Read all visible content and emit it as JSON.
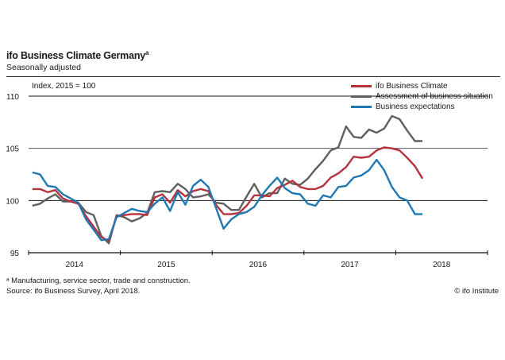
{
  "header": {
    "title": "ifo Business Climate Germany",
    "title_footnote_mark": "a",
    "subtitle": "Seasonally adjusted"
  },
  "footer": {
    "footnote": "ᵃ Manufacturing, service sector, trade and construction.",
    "source": "Source: ifo Business Survey, April 2018.",
    "copyright": "© ifo Institute"
  },
  "chart_data": {
    "type": "line",
    "title": "ifo Business Climate Germany",
    "subtitle": "Seasonally adjusted",
    "ylabel": "Index, 2015 = 100",
    "xlabel": "",
    "ylim": [
      95,
      110
    ],
    "yticks": [
      95,
      100,
      105,
      110
    ],
    "gridlines_y": [
      100,
      105,
      110
    ],
    "x_range": [
      "2014-01",
      "2018-12"
    ],
    "x_tick_labels": [
      "2014",
      "2015",
      "2016",
      "2017",
      "2018"
    ],
    "x_frequency": "monthly",
    "x_start": "2014-01",
    "legend_position": "top-right",
    "series": [
      {
        "name": "ifo Business Climate",
        "color": "#b5333f",
        "values": [
          101.1,
          101.1,
          100.8,
          101.0,
          100.2,
          99.9,
          99.7,
          98.5,
          97.5,
          96.5,
          96.1,
          98.5,
          98.6,
          98.7,
          98.7,
          98.6,
          100.3,
          100.6,
          99.8,
          101.0,
          100.4,
          100.9,
          101.1,
          100.9,
          99.6,
          98.7,
          98.7,
          98.8,
          99.5,
          100.5,
          100.5,
          100.4,
          101.2,
          101.5,
          101.9,
          101.3,
          101.1,
          101.1,
          101.4,
          102.2,
          102.6,
          103.2,
          104.2,
          104.1,
          104.2,
          104.8,
          105.1,
          105.0,
          104.8,
          104.1,
          103.3,
          102.1
        ]
      },
      {
        "name": "Assessment of business situation",
        "color": "#5f5f5f",
        "values": [
          99.5,
          99.7,
          100.2,
          100.6,
          99.9,
          99.9,
          99.8,
          98.9,
          98.6,
          96.6,
          95.9,
          98.6,
          98.4,
          98.0,
          98.3,
          98.8,
          100.8,
          100.9,
          100.8,
          101.6,
          101.1,
          100.3,
          100.4,
          100.6,
          99.8,
          99.7,
          99.1,
          99.1,
          100.4,
          101.6,
          100.3,
          100.7,
          100.7,
          102.1,
          101.6,
          101.5,
          102.1,
          103.0,
          103.8,
          104.8,
          105.1,
          107.1,
          106.1,
          106.0,
          106.8,
          106.5,
          106.9,
          108.1,
          107.8,
          106.7,
          105.7,
          105.7
        ]
      },
      {
        "name": "Business expectations",
        "color": "#1f78b4",
        "values": [
          102.7,
          102.5,
          101.4,
          101.3,
          100.6,
          100.2,
          99.8,
          98.2,
          97.2,
          96.2,
          96.3,
          98.4,
          98.8,
          99.2,
          99.0,
          98.9,
          99.7,
          100.3,
          99.0,
          100.8,
          99.6,
          101.4,
          102.0,
          101.3,
          99.3,
          97.3,
          98.2,
          98.7,
          98.9,
          99.4,
          100.5,
          101.4,
          102.2,
          101.2,
          100.7,
          100.6,
          99.7,
          99.5,
          100.5,
          100.3,
          101.3,
          101.4,
          102.2,
          102.4,
          102.9,
          103.9,
          102.9,
          101.3,
          100.3,
          100.0,
          98.7,
          98.7
        ]
      }
    ]
  }
}
